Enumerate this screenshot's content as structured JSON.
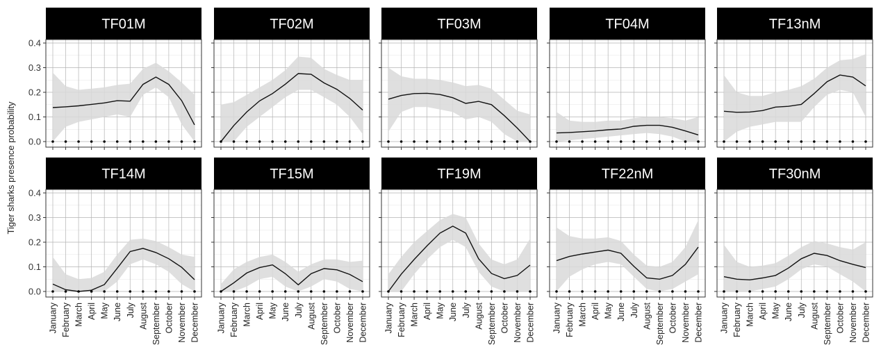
{
  "chart_data": {
    "type": "line",
    "ylabel": "Tiger sharks presence probability",
    "xlabel": "",
    "ylim": [
      0,
      0.4
    ],
    "yticks": [
      0.0,
      0.1,
      0.2,
      0.3,
      0.4
    ],
    "ytick_labels": [
      "0.0",
      "0.1",
      "0.2",
      "0.3",
      "0.4"
    ],
    "categories": [
      "January",
      "February",
      "March",
      "April",
      "May",
      "June",
      "July",
      "August",
      "September",
      "October",
      "November",
      "December"
    ],
    "grid": true,
    "colors": {
      "line": "#111111",
      "ribbon": "#d9d9d9",
      "strip": "#000000",
      "strip_text": "#ffffff",
      "grid": "#b3b3b3"
    },
    "panels": [
      {
        "title": "TF01M",
        "values": [
          0.138,
          0.141,
          0.145,
          0.151,
          0.157,
          0.166,
          0.164,
          0.232,
          0.262,
          0.232,
          0.166,
          0.068
        ],
        "lower": [
          0.0,
          0.06,
          0.08,
          0.09,
          0.1,
          0.11,
          0.1,
          0.19,
          0.22,
          0.18,
          0.07,
          0.0
        ],
        "upper": [
          0.28,
          0.225,
          0.21,
          0.215,
          0.22,
          0.23,
          0.235,
          0.295,
          0.32,
          0.285,
          0.24,
          0.19
        ]
      },
      {
        "title": "TF02M",
        "values": [
          0.0,
          0.065,
          0.12,
          0.165,
          0.195,
          0.233,
          0.276,
          0.273,
          0.238,
          0.212,
          0.175,
          0.128
        ],
        "lower": [
          0.0,
          0.0,
          0.06,
          0.1,
          0.14,
          0.18,
          0.21,
          0.21,
          0.18,
          0.15,
          0.1,
          0.03
        ],
        "upper": [
          0.15,
          0.16,
          0.19,
          0.22,
          0.25,
          0.29,
          0.345,
          0.34,
          0.295,
          0.27,
          0.25,
          0.25
        ]
      },
      {
        "title": "TF03M",
        "values": [
          0.172,
          0.187,
          0.195,
          0.196,
          0.191,
          0.178,
          0.155,
          0.163,
          0.15,
          0.105,
          0.055,
          0.0
        ],
        "lower": [
          0.04,
          0.12,
          0.14,
          0.14,
          0.13,
          0.12,
          0.09,
          0.1,
          0.08,
          0.03,
          0.0,
          0.0
        ],
        "upper": [
          0.3,
          0.265,
          0.255,
          0.255,
          0.25,
          0.24,
          0.225,
          0.23,
          0.215,
          0.17,
          0.125,
          0.11
        ]
      },
      {
        "title": "TF04M",
        "values": [
          0.035,
          0.037,
          0.04,
          0.043,
          0.048,
          0.051,
          0.062,
          0.066,
          0.066,
          0.058,
          0.043,
          0.027
        ],
        "lower": [
          0.0,
          0.005,
          0.01,
          0.015,
          0.02,
          0.025,
          0.03,
          0.035,
          0.03,
          0.02,
          0.0,
          0.0
        ],
        "upper": [
          0.12,
          0.085,
          0.08,
          0.08,
          0.085,
          0.085,
          0.095,
          0.1,
          0.1,
          0.095,
          0.085,
          0.1
        ]
      },
      {
        "title": "TF13nM",
        "values": [
          0.123,
          0.119,
          0.12,
          0.126,
          0.14,
          0.143,
          0.151,
          0.195,
          0.243,
          0.27,
          0.262,
          0.226
        ],
        "lower": [
          0.0,
          0.04,
          0.06,
          0.07,
          0.08,
          0.08,
          0.08,
          0.14,
          0.19,
          0.21,
          0.2,
          0.1
        ],
        "upper": [
          0.27,
          0.2,
          0.185,
          0.185,
          0.2,
          0.21,
          0.225,
          0.255,
          0.3,
          0.33,
          0.335,
          0.355
        ]
      },
      {
        "title": "TF14M",
        "values": [
          0.03,
          0.007,
          0.0,
          0.005,
          0.028,
          0.094,
          0.162,
          0.175,
          0.158,
          0.133,
          0.098,
          0.048
        ],
        "lower": [
          0.0,
          0.0,
          0.0,
          0.0,
          0.0,
          0.04,
          0.11,
          0.13,
          0.11,
          0.08,
          0.03,
          0.0
        ],
        "upper": [
          0.14,
          0.07,
          0.05,
          0.055,
          0.08,
          0.15,
          0.21,
          0.215,
          0.205,
          0.18,
          0.15,
          0.14
        ]
      },
      {
        "title": "TF15M",
        "values": [
          0.0,
          0.035,
          0.075,
          0.097,
          0.108,
          0.072,
          0.027,
          0.072,
          0.093,
          0.088,
          0.069,
          0.04
        ],
        "lower": [
          0.0,
          0.0,
          0.02,
          0.05,
          0.06,
          0.02,
          0.0,
          0.02,
          0.05,
          0.04,
          0.01,
          0.0
        ],
        "upper": [
          0.03,
          0.09,
          0.12,
          0.14,
          0.15,
          0.12,
          0.08,
          0.11,
          0.13,
          0.13,
          0.12,
          0.125
        ]
      },
      {
        "title": "TF19M",
        "values": [
          0.0,
          0.07,
          0.13,
          0.185,
          0.237,
          0.265,
          0.237,
          0.133,
          0.073,
          0.052,
          0.065,
          0.107
        ],
        "lower": [
          0.0,
          0.0,
          0.07,
          0.13,
          0.18,
          0.21,
          0.18,
          0.08,
          0.02,
          0.0,
          0.0,
          0.0
        ],
        "upper": [
          0.07,
          0.14,
          0.2,
          0.245,
          0.29,
          0.315,
          0.3,
          0.195,
          0.13,
          0.11,
          0.13,
          0.215
        ]
      },
      {
        "title": "TF22nM",
        "values": [
          0.125,
          0.142,
          0.152,
          0.16,
          0.168,
          0.155,
          0.102,
          0.055,
          0.05,
          0.065,
          0.11,
          0.18
        ],
        "lower": [
          0.0,
          0.06,
          0.09,
          0.11,
          0.12,
          0.11,
          0.06,
          0.01,
          0.0,
          0.01,
          0.04,
          0.07
        ],
        "upper": [
          0.26,
          0.225,
          0.215,
          0.215,
          0.22,
          0.205,
          0.15,
          0.105,
          0.1,
          0.12,
          0.18,
          0.29
        ]
      },
      {
        "title": "TF30nM",
        "values": [
          0.06,
          0.05,
          0.047,
          0.055,
          0.065,
          0.095,
          0.133,
          0.155,
          0.146,
          0.125,
          0.11,
          0.097
        ],
        "lower": [
          0.0,
          0.0,
          0.0,
          0.01,
          0.02,
          0.05,
          0.09,
          0.11,
          0.1,
          0.07,
          0.04,
          0.0
        ],
        "upper": [
          0.19,
          0.12,
          0.1,
          0.105,
          0.115,
          0.145,
          0.18,
          0.205,
          0.195,
          0.18,
          0.17,
          0.2
        ]
      }
    ]
  }
}
